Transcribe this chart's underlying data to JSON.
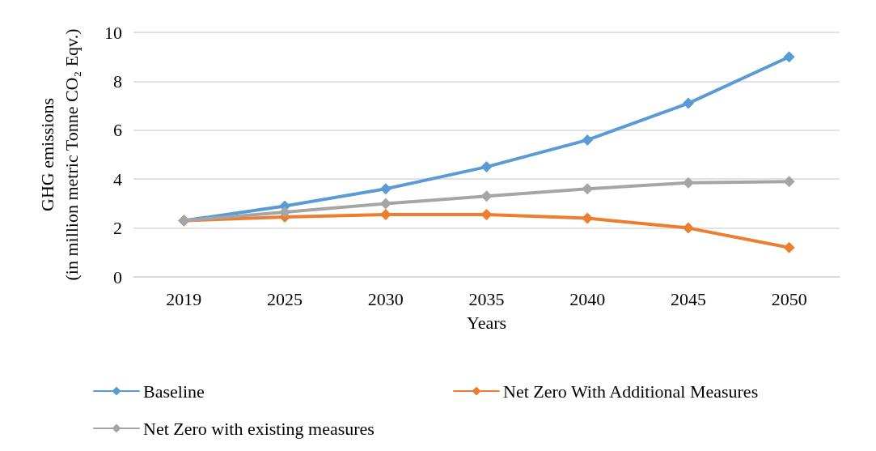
{
  "chart_data": {
    "type": "line",
    "xlabel": "Years",
    "ylabel": "GHG emissions\n(in million metric Tonne CO₂ Eqv.)",
    "categories": [
      "2019",
      "2025",
      "2030",
      "2035",
      "2040",
      "2045",
      "2050"
    ],
    "series": [
      {
        "name": "Baseline",
        "color": "#5b9bd5",
        "values": [
          2.3,
          2.9,
          3.6,
          4.5,
          5.6,
          7.1,
          9.0
        ]
      },
      {
        "name": "Net Zero With Additional Measures",
        "color": "#ed7d31",
        "values": [
          2.3,
          2.45,
          2.55,
          2.55,
          2.4,
          2.0,
          1.2
        ]
      },
      {
        "name": "Net Zero with existing measures",
        "color": "#a5a5a5",
        "values": [
          2.3,
          2.65,
          3.0,
          3.3,
          3.6,
          3.85,
          3.9
        ]
      }
    ],
    "ylim": [
      0,
      10
    ],
    "yticks": [
      0,
      2,
      4,
      6,
      8,
      10
    ],
    "grid": "y",
    "legend": "bottom",
    "marker": "diamond",
    "line_style": "solid"
  }
}
